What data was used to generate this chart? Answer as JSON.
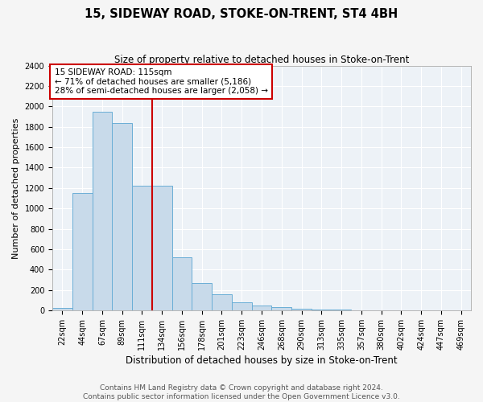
{
  "title": "15, SIDEWAY ROAD, STOKE-ON-TRENT, ST4 4BH",
  "subtitle": "Size of property relative to detached houses in Stoke-on-Trent",
  "xlabel": "Distribution of detached houses by size in Stoke-on-Trent",
  "ylabel": "Number of detached properties",
  "categories": [
    "22sqm",
    "44sqm",
    "67sqm",
    "89sqm",
    "111sqm",
    "134sqm",
    "156sqm",
    "178sqm",
    "201sqm",
    "223sqm",
    "246sqm",
    "268sqm",
    "290sqm",
    "313sqm",
    "335sqm",
    "357sqm",
    "380sqm",
    "402sqm",
    "424sqm",
    "447sqm",
    "469sqm"
  ],
  "values": [
    25,
    1155,
    1950,
    1835,
    1220,
    1220,
    520,
    270,
    155,
    75,
    45,
    35,
    15,
    8,
    5,
    3,
    2,
    2,
    1,
    1,
    1
  ],
  "bar_color": "#c8daea",
  "bar_edge_color": "#6aaed6",
  "vline_x": 4.5,
  "vline_color": "#cc0000",
  "annotation_text": "15 SIDEWAY ROAD: 115sqm\n← 71% of detached houses are smaller (5,186)\n28% of semi-detached houses are larger (2,058) →",
  "annotation_box_color": "#cc0000",
  "ylim": [
    0,
    2400
  ],
  "yticks": [
    0,
    200,
    400,
    600,
    800,
    1000,
    1200,
    1400,
    1600,
    1800,
    2000,
    2200,
    2400
  ],
  "footnote": "Contains HM Land Registry data © Crown copyright and database right 2024.\nContains public sector information licensed under the Open Government Licence v3.0.",
  "bg_color": "#edf2f7",
  "grid_color": "#ffffff",
  "title_fontsize": 10.5,
  "subtitle_fontsize": 8.5,
  "xlabel_fontsize": 8.5,
  "ylabel_fontsize": 8,
  "tick_fontsize": 7,
  "annot_fontsize": 7.5,
  "footnote_fontsize": 6.5
}
